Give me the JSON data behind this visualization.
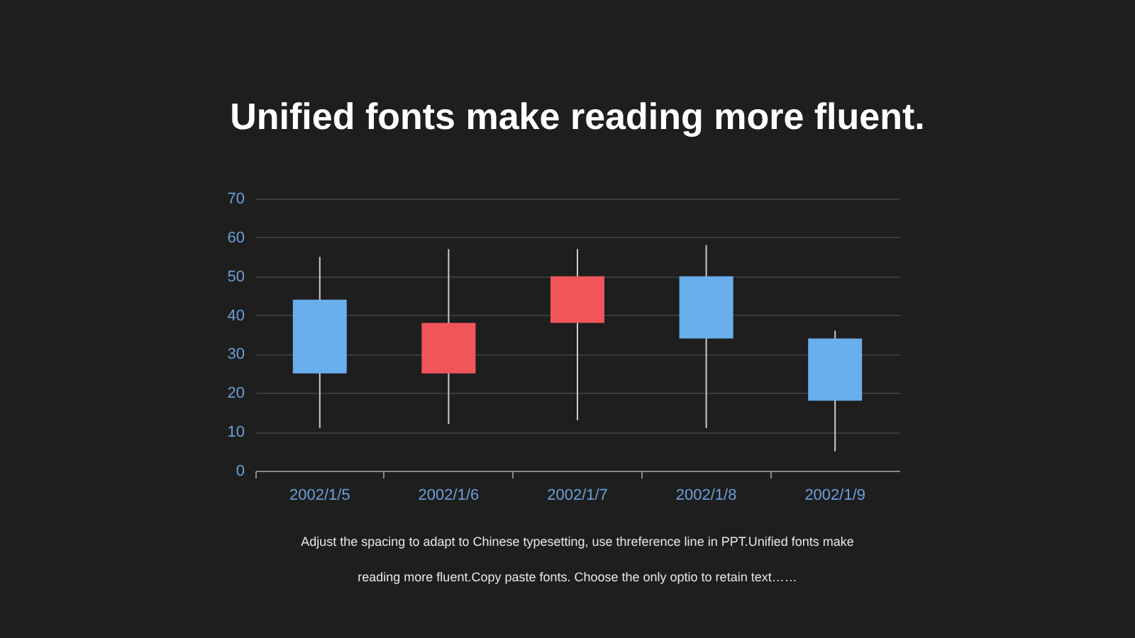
{
  "chart_data": {
    "type": "candlestick",
    "title": "Unified fonts make reading more fluent.",
    "categories": [
      "2002/1/5",
      "2002/1/6",
      "2002/1/7",
      "2002/1/8",
      "2002/1/9"
    ],
    "ohlc": [
      [
        44,
        55,
        11,
        25
      ],
      [
        25,
        57,
        12,
        38
      ],
      [
        38,
        57,
        13,
        50
      ],
      [
        50,
        58,
        11,
        34
      ],
      [
        34,
        36,
        5,
        18
      ]
    ],
    "colors": [
      "#6aaeee",
      "#f0555a",
      "#f0555a",
      "#6aaeee",
      "#6aaeee"
    ],
    "ylim": [
      0,
      70
    ],
    "yticks": [
      0,
      10,
      20,
      30,
      40,
      50,
      60,
      70
    ],
    "grid": "y",
    "annotations": [
      "Adjust the spacing to adapt to Chinese typesetting, use threference line in PPT.Unified fonts make reading more fluent.Copy paste fonts. Choose the only optio to retain text……"
    ]
  }
}
